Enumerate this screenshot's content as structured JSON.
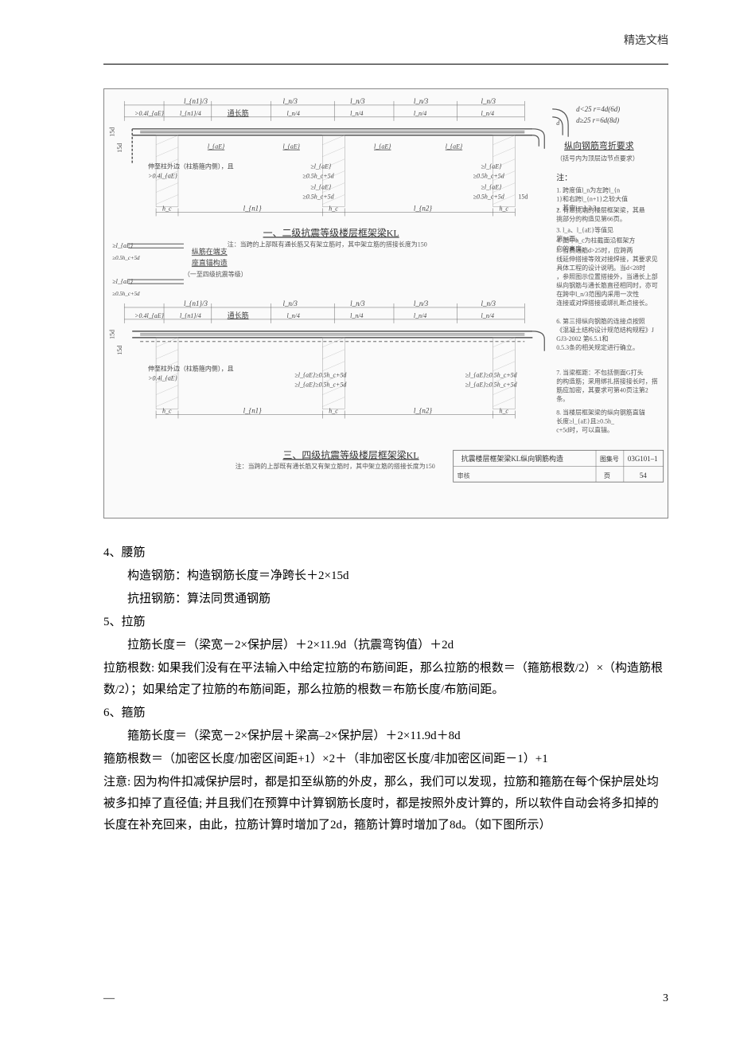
{
  "header": {
    "label": "精选文档"
  },
  "diagram": {
    "type": "engineering-drawing",
    "background_color": "#fafafa",
    "line_color": "#555555",
    "dim_line_color": "#666666",
    "text_color": "#444444",
    "note_text_color": "#555555",
    "font_size_small": 9,
    "font_size_normal": 10,
    "font_size_title": 12,
    "upper_section": {
      "title": "一、二级抗震等级楼层框架梁KL",
      "subtitle": "注：当跨的上部既有通长筋又有架立筋时，其中架立筋的搭接长度为150",
      "top_dims": [
        "l_{n1}/3",
        "l_n/3",
        "l_n/3",
        "l_n/3",
        "l_n/3"
      ],
      "second_dims": [
        ">0.4l_{aE}",
        "l_{n1}/4",
        "通长筋",
        "l_n/4",
        "l_n/4",
        "l_n/4",
        "l_n/4"
      ],
      "vertical_left": [
        "15d",
        "15d"
      ],
      "bottom_horiz": [
        "l_{n1}",
        "l_{n2}"
      ],
      "col_labels": [
        "h_c",
        "h_c",
        "h_c"
      ],
      "inner_labels": [
        "l_{aE}",
        "l_{aE}",
        "l_{aE}",
        "l_{aE}"
      ],
      "anchor_labels": [
        "≥l_{aE}",
        "≥0.5h_c+5d"
      ],
      "left_label1": "伸至柱外边（柱筋箍内侧），且",
      "left_label2": ">0.4l_{aE}",
      "side_note1": "纵筋在端支",
      "side_note2": "座直锚构造",
      "side_note3": "（一至四级抗震等级）"
    },
    "lower_section": {
      "title": "三、四级抗震等级楼层框架梁KL",
      "subtitle": "注：当跨的上部既有通长筋又有架立筋时，其中架立筋的搭接长度为150",
      "top_dims": [
        "l_{n1}/3",
        "l_n/3",
        "l_n/3",
        "l_n/3",
        "l_n/3"
      ],
      "second_dims": [
        ">0.4l_{aE}",
        "l_{n1}/4",
        "通长筋",
        "l_n/4",
        "l_n/4",
        "l_n/4",
        "l_n/4"
      ],
      "vertical_left": [
        "15d",
        "15d"
      ],
      "bottom_horiz": [
        "l_{n1}",
        "l_{n2}"
      ],
      "col_labels": [
        "h_c",
        "h_c",
        "h_c"
      ],
      "anchor_labels": [
        "≥l_{aE}≥0.5h_c+5d",
        "≥l_{aE}≥0.5h_c+5d"
      ],
      "left_label1": "伸至柱外边（柱筋箍内侧），且",
      "left_label2": ">0.4l_{aE}"
    },
    "right_callout": {
      "line1": "d<25 r=4d(6d)",
      "line2": "d≥25 r=6d(8d)",
      "title": "纵向钢筋弯折要求",
      "subtitle": "（括号内为顶层边节点要求）"
    },
    "notes_title": "注：",
    "notes": [
      "1. 跨度值l_n为左跨l_{n1}和右跨l_{n+1}之较大值，其中i＝1,2,3……",
      "2. 有悬挑端的楼层框架梁，其悬挑部分的构造见第66页。",
      "3. l_a、l_{aE}等值见第34页。",
      "4. 图中h_c为柱截面沿框架方向的高度。",
      "5. 当贯通筋d>25时，应跨两线延伸搭接等效对接焊接，其要求见具体工程的设计说明。当d<28时，参照图示位置搭接外，当通长上部纵向钢筋与通长筋直径相同时，亦可在跨中l_n/3范围内采用一次性连接或对焊搭接或绑扎断点接长。",
      "6. 第三排纵向钢筋的连接点按照《混凝土结构设计规范结构规程》JGJ3-2002 第6.5.1和0.5.3条的相关规定进行确立。",
      "7. 当梁框距：不包括侧面G打头的构造筋；采用绑扎搭接接长时，搭筋应加密，其要求可第40页注第2条。",
      "8. 当楼层框架梁的纵向钢筋直锚长度≥l_{aE}且≥0.5h_c+5d时，可以直锚。"
    ],
    "bottom_box": {
      "left_title": "抗震楼层框架梁KL纵向钢筋构造",
      "right_label": "图集号",
      "right_value": "03G101–1",
      "page_row_left": "审核",
      "page_row_right": "页",
      "page_num": "54"
    }
  },
  "content": {
    "sections": [
      {
        "num": "4、腰筋",
        "lines": [
          "构造钢筋：构造钢筋长度＝净跨长＋2×15d",
          "抗扭钢筋：算法同贯通钢筋"
        ]
      },
      {
        "num": "5、拉筋",
        "lines": [
          "拉筋长度＝（梁宽－2×保护层）＋2×11.9d（抗震弯钩值）＋2d"
        ],
        "paras": [
          "拉筋根数: 如果我们没有在平法输入中给定拉筋的布筋间距，那么拉筋的根数＝（箍筋根数/2）×（构造筋根数/2）；如果给定了拉筋的布筋间距，那么拉筋的根数＝布筋长度/布筋间距。"
        ]
      },
      {
        "num": "6、箍筋",
        "lines": [
          "箍筋长度＝（梁宽－2×保护层＋梁高–2×保护层）＋2×11.9d＋8d"
        ],
        "paras": [
          "箍筋根数＝（加密区长度/加密区间距+1）×2＋（非加密区长度/非加密区间距－1）+1",
          "注意: 因为构件扣减保护层时，都是扣至纵筋的外皮，那么，我们可以发现，拉筋和箍筋在每个保护层处均被多扣掉了直径值; 并且我们在预算中计算钢筋长度时，都是按照外皮计算的，所以软件自动会将多扣掉的长度在补充回来，由此，拉筋计算时增加了2d，箍筋计算时增加了8d。（如下图所示）"
        ]
      }
    ]
  },
  "footer": {
    "dash": "—",
    "page": "3"
  }
}
